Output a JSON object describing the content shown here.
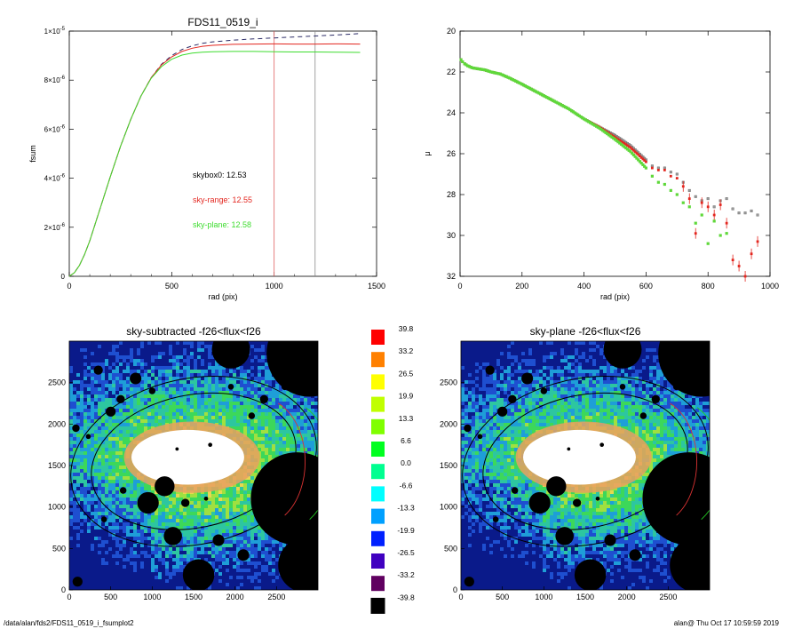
{
  "footer": {
    "left": "/data/alan/fds2/FDS11_0519_i_fsumplot2",
    "right": "alan@  Thu Oct 17 10:59:59 2019"
  },
  "colors": {
    "dashed": "#2b2b66",
    "red": "#e3261f",
    "green": "#3ddc2e",
    "vline_red": "#e06060",
    "vline_grey": "#888888"
  },
  "chart_data": [
    {
      "id": "fsum",
      "type": "line",
      "title": "FDS11_0519_i",
      "xlabel": "rad (pix)",
      "ylabel": "fsum",
      "xlim": [
        0,
        1500
      ],
      "ylim": [
        0,
        1e-05
      ],
      "xticks": [
        0,
        500,
        1000,
        1500
      ],
      "xtick_labels": [
        "0",
        "500",
        "1000",
        "1500"
      ],
      "yticks": [
        0,
        2e-06,
        4e-06,
        6e-06,
        8e-06,
        1e-05
      ],
      "ytick_labels": [
        {
          "m": "0",
          "e": ""
        },
        {
          "m": "2×10",
          "e": "-6"
        },
        {
          "m": "4×10",
          "e": "-6"
        },
        {
          "m": "6×10",
          "e": "-6"
        },
        {
          "m": "8×10",
          "e": "-6"
        },
        {
          "m": "1×10",
          "e": "-5"
        }
      ],
      "x": [
        0,
        25,
        50,
        75,
        100,
        150,
        200,
        250,
        300,
        350,
        400,
        450,
        500,
        550,
        600,
        650,
        700,
        800,
        900,
        1000,
        1100,
        1200,
        1300,
        1420
      ],
      "series": [
        {
          "style": "dashed",
          "values": [
            0,
            1.5e-07,
            4.5e-07,
            9e-07,
            1.45e-06,
            2.75e-06,
            4.05e-06,
            5.3e-06,
            6.4e-06,
            7.35e-06,
            8.1e-06,
            8.65e-06,
            9e-06,
            9.25e-06,
            9.4e-06,
            9.5e-06,
            9.56e-06,
            9.63e-06,
            9.68e-06,
            9.72e-06,
            9.76e-06,
            9.8e-06,
            9.84e-06,
            9.9e-06
          ]
        },
        {
          "style": "red",
          "values": [
            0,
            1.5e-07,
            4.5e-07,
            9e-07,
            1.45e-06,
            2.75e-06,
            4.05e-06,
            5.3e-06,
            6.4e-06,
            7.35e-06,
            8.1e-06,
            8.62e-06,
            8.95e-06,
            9.17e-06,
            9.3e-06,
            9.38e-06,
            9.42e-06,
            9.46e-06,
            9.47e-06,
            9.48e-06,
            9.47e-06,
            9.47e-06,
            9.48e-06,
            9.47e-06
          ]
        },
        {
          "style": "green",
          "values": [
            0,
            1.5e-07,
            4.5e-07,
            9e-07,
            1.45e-06,
            2.75e-06,
            4.05e-06,
            5.3e-06,
            6.4e-06,
            7.35e-06,
            8.08e-06,
            8.55e-06,
            8.85e-06,
            9.02e-06,
            9.1e-06,
            9.14e-06,
            9.16e-06,
            9.17e-06,
            9.17e-06,
            9.16e-06,
            9.15e-06,
            9.15e-06,
            9.14e-06,
            9.13e-06
          ]
        }
      ],
      "vlines": [
        {
          "x": 1000,
          "color": "vline_red"
        },
        {
          "x": 1200,
          "color": "vline_grey"
        }
      ],
      "annotations": [
        {
          "text": "skybox0: 12.53",
          "color": "#000000"
        },
        {
          "text": "sky-range: 12.55",
          "color": "#e3261f"
        },
        {
          "text": "sky-plane: 12.58",
          "color": "#3ddc2e"
        }
      ]
    },
    {
      "id": "profile",
      "type": "scatter",
      "xlabel": "rad (pix)",
      "ylabel": "μ",
      "xlim": [
        0,
        1000
      ],
      "ylim": [
        32,
        20
      ],
      "xticks": [
        0,
        200,
        400,
        600,
        800,
        1000
      ],
      "yticks": [
        20,
        22,
        24,
        26,
        28,
        30,
        32
      ],
      "grey_points": [
        [
          3,
          21.4
        ],
        [
          8,
          21.5
        ],
        [
          15,
          21.6
        ],
        [
          25,
          21.7
        ],
        [
          40,
          21.8
        ],
        [
          60,
          21.85
        ],
        [
          80,
          21.9
        ],
        [
          100,
          22.0
        ],
        [
          130,
          22.1
        ],
        [
          160,
          22.3
        ],
        [
          200,
          22.6
        ],
        [
          250,
          23.0
        ],
        [
          300,
          23.4
        ],
        [
          350,
          23.8
        ],
        [
          400,
          24.3
        ],
        [
          450,
          24.7
        ],
        [
          500,
          25.1
        ],
        [
          550,
          25.6
        ],
        [
          600,
          26.3
        ],
        [
          620,
          26.6
        ],
        [
          640,
          26.7
        ],
        [
          660,
          26.7
        ],
        [
          680,
          26.9
        ],
        [
          700,
          27.0
        ],
        [
          720,
          27.4
        ],
        [
          740,
          27.8
        ],
        [
          760,
          28.1
        ],
        [
          780,
          28.3
        ],
        [
          800,
          28.2
        ],
        [
          820,
          28.6
        ],
        [
          840,
          28.3
        ],
        [
          860,
          28.2
        ],
        [
          880,
          28.7
        ],
        [
          900,
          28.9
        ],
        [
          920,
          28.9
        ],
        [
          940,
          28.8
        ],
        [
          960,
          29.0
        ]
      ],
      "red_points": [
        [
          3,
          21.4
        ],
        [
          8,
          21.5
        ],
        [
          15,
          21.6
        ],
        [
          25,
          21.7
        ],
        [
          40,
          21.8
        ],
        [
          60,
          21.85
        ],
        [
          80,
          21.9
        ],
        [
          100,
          22.0
        ],
        [
          130,
          22.1
        ],
        [
          160,
          22.3
        ],
        [
          200,
          22.6
        ],
        [
          250,
          23.0
        ],
        [
          300,
          23.4
        ],
        [
          350,
          23.8
        ],
        [
          400,
          24.3
        ],
        [
          450,
          24.7
        ],
        [
          500,
          25.2
        ],
        [
          550,
          25.7
        ],
        [
          600,
          26.4
        ],
        [
          620,
          26.7
        ],
        [
          640,
          26.8
        ],
        [
          660,
          26.8
        ],
        [
          680,
          27.1
        ],
        [
          700,
          27.2
        ],
        [
          720,
          27.6
        ],
        [
          740,
          28.2
        ],
        [
          760,
          29.9
        ],
        [
          780,
          28.4
        ],
        [
          800,
          28.6
        ],
        [
          820,
          29.0
        ],
        [
          840,
          28.5
        ],
        [
          860,
          29.4
        ],
        [
          880,
          31.2
        ],
        [
          900,
          31.5
        ],
        [
          920,
          32.0
        ],
        [
          940,
          30.9
        ],
        [
          960,
          30.3
        ]
      ],
      "green_points": [
        [
          3,
          21.4
        ],
        [
          8,
          21.5
        ],
        [
          15,
          21.6
        ],
        [
          25,
          21.7
        ],
        [
          40,
          21.8
        ],
        [
          60,
          21.85
        ],
        [
          80,
          21.9
        ],
        [
          100,
          22.0
        ],
        [
          130,
          22.1
        ],
        [
          160,
          22.3
        ],
        [
          200,
          22.6
        ],
        [
          250,
          23.0
        ],
        [
          300,
          23.4
        ],
        [
          350,
          23.8
        ],
        [
          400,
          24.3
        ],
        [
          450,
          24.75
        ],
        [
          500,
          25.3
        ],
        [
          550,
          25.9
        ],
        [
          600,
          26.7
        ],
        [
          620,
          27.1
        ],
        [
          640,
          27.4
        ],
        [
          660,
          27.5
        ],
        [
          680,
          27.8
        ],
        [
          700,
          28.0
        ],
        [
          720,
          28.4
        ],
        [
          740,
          28.6
        ],
        [
          760,
          29.4
        ],
        [
          780,
          29.0
        ],
        [
          800,
          30.4
        ],
        [
          820,
          29.3
        ],
        [
          840,
          30.0
        ],
        [
          860,
          29.9
        ]
      ]
    },
    {
      "id": "sky-subtracted",
      "type": "heatmap",
      "title": "sky-subtracted -f26<flux<f26",
      "xlim": [
        0,
        3000
      ],
      "ylim": [
        0,
        3000
      ],
      "xticks": [
        0,
        500,
        1000,
        1500,
        2000,
        2500
      ],
      "yticks": [
        0,
        500,
        1000,
        1500,
        2000,
        2500
      ]
    },
    {
      "id": "sky-plane",
      "type": "heatmap",
      "title": "sky-plane -f26<flux<f26",
      "xlim": [
        0,
        3000
      ],
      "ylim": [
        0,
        3000
      ],
      "xticks": [
        0,
        500,
        1000,
        1500,
        2000,
        2500
      ],
      "yticks": [
        0,
        500,
        1000,
        1500,
        2000,
        2500
      ]
    },
    {
      "id": "colorbar",
      "type": "legend",
      "levels": [
        {
          "label": "39.8",
          "color": "#ff0000"
        },
        {
          "label": "33.2",
          "color": "#ff8000"
        },
        {
          "label": "26.5",
          "color": "#ffff00"
        },
        {
          "label": "19.9",
          "color": "#c0ff00"
        },
        {
          "label": "13.3",
          "color": "#80ff00"
        },
        {
          "label": "6.6",
          "color": "#00ff20"
        },
        {
          "label": "0.0",
          "color": "#00ff90"
        },
        {
          "label": "-6.6",
          "color": "#00ffff"
        },
        {
          "label": "-13.3",
          "color": "#00a0ff"
        },
        {
          "label": "-19.9",
          "color": "#0020ff"
        },
        {
          "label": "-26.5",
          "color": "#4000c0"
        },
        {
          "label": "-33.2",
          "color": "#600060"
        },
        {
          "label": "-39.8",
          "color": "#000000"
        }
      ]
    }
  ]
}
